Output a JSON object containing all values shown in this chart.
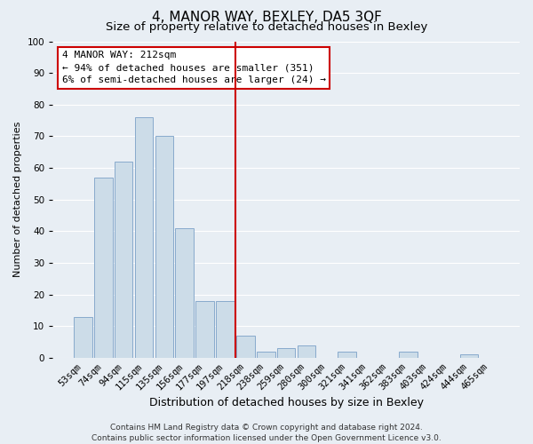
{
  "title": "4, MANOR WAY, BEXLEY, DA5 3QF",
  "subtitle": "Size of property relative to detached houses in Bexley",
  "xlabel": "Distribution of detached houses by size in Bexley",
  "ylabel": "Number of detached properties",
  "bar_labels": [
    "53sqm",
    "74sqm",
    "94sqm",
    "115sqm",
    "135sqm",
    "156sqm",
    "177sqm",
    "197sqm",
    "218sqm",
    "238sqm",
    "259sqm",
    "280sqm",
    "300sqm",
    "321sqm",
    "341sqm",
    "362sqm",
    "383sqm",
    "403sqm",
    "424sqm",
    "444sqm",
    "465sqm"
  ],
  "bar_values": [
    13,
    57,
    62,
    76,
    70,
    41,
    18,
    18,
    7,
    2,
    3,
    4,
    0,
    2,
    0,
    0,
    2,
    0,
    0,
    1,
    0
  ],
  "bar_color": "#ccdce8",
  "bar_edge_color": "#88aacc",
  "vline_index": 8,
  "vline_color": "#cc0000",
  "ylim": [
    0,
    100
  ],
  "yticks": [
    0,
    10,
    20,
    30,
    40,
    50,
    60,
    70,
    80,
    90,
    100
  ],
  "annotation_title": "4 MANOR WAY: 212sqm",
  "annotation_line1": "← 94% of detached houses are smaller (351)",
  "annotation_line2": "6% of semi-detached houses are larger (24) →",
  "annotation_box_color": "#ffffff",
  "annotation_box_edge": "#cc0000",
  "footer_line1": "Contains HM Land Registry data © Crown copyright and database right 2024.",
  "footer_line2": "Contains public sector information licensed under the Open Government Licence v3.0.",
  "fig_background": "#e8eef4",
  "plot_background": "#e8eef4",
  "grid_color": "#ffffff",
  "title_fontsize": 11,
  "subtitle_fontsize": 9.5,
  "xlabel_fontsize": 9,
  "ylabel_fontsize": 8,
  "tick_fontsize": 7.5,
  "annotation_fontsize": 8,
  "footer_fontsize": 6.5
}
